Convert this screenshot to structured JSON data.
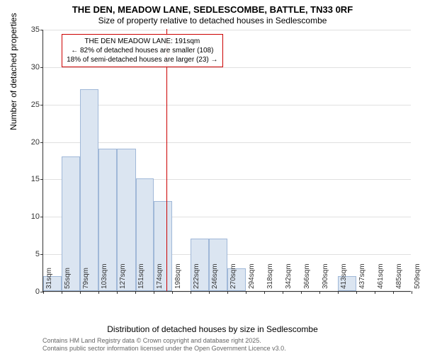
{
  "titles": {
    "main": "THE DEN, MEADOW LANE, SEDLESCOMBE, BATTLE, TN33 0RF",
    "sub": "Size of property relative to detached houses in Sedlescombe"
  },
  "axes": {
    "y_label": "Number of detached properties",
    "x_label": "Distribution of detached houses by size in Sedlescombe",
    "y_ticks": [
      0,
      5,
      10,
      15,
      20,
      25,
      30,
      35
    ],
    "y_max": 35,
    "x_ticks": [
      "31sqm",
      "55sqm",
      "79sqm",
      "103sqm",
      "127sqm",
      "151sqm",
      "174sqm",
      "198sqm",
      "222sqm",
      "246sqm",
      "270sqm",
      "294sqm",
      "318sqm",
      "342sqm",
      "366sqm",
      "390sqm",
      "413sqm",
      "437sqm",
      "461sqm",
      "485sqm",
      "509sqm"
    ],
    "x_min": 31,
    "x_max": 509
  },
  "histogram": {
    "type": "histogram",
    "bar_fill": "#dbe5f1",
    "bar_stroke": "#a0b8d8",
    "grid_color": "#e0e0e0",
    "background_color": "#ffffff",
    "bins": [
      {
        "start": 31,
        "end": 55,
        "count": 2
      },
      {
        "start": 55,
        "end": 79,
        "count": 18
      },
      {
        "start": 79,
        "end": 103,
        "count": 27
      },
      {
        "start": 103,
        "end": 127,
        "count": 19
      },
      {
        "start": 127,
        "end": 151,
        "count": 19
      },
      {
        "start": 151,
        "end": 174,
        "count": 15
      },
      {
        "start": 174,
        "end": 198,
        "count": 12
      },
      {
        "start": 198,
        "end": 222,
        "count": 0
      },
      {
        "start": 222,
        "end": 246,
        "count": 7
      },
      {
        "start": 246,
        "end": 270,
        "count": 7
      },
      {
        "start": 270,
        "end": 294,
        "count": 3
      },
      {
        "start": 294,
        "end": 318,
        "count": 0
      },
      {
        "start": 318,
        "end": 342,
        "count": 0
      },
      {
        "start": 342,
        "end": 366,
        "count": 0
      },
      {
        "start": 366,
        "end": 390,
        "count": 0
      },
      {
        "start": 390,
        "end": 413,
        "count": 0
      },
      {
        "start": 413,
        "end": 437,
        "count": 2
      },
      {
        "start": 437,
        "end": 461,
        "count": 0
      },
      {
        "start": 461,
        "end": 485,
        "count": 0
      },
      {
        "start": 485,
        "end": 509,
        "count": 0
      }
    ]
  },
  "marker": {
    "value": 191,
    "color": "#cc0000"
  },
  "annotation": {
    "line1": "THE DEN MEADOW LANE: 191sqm",
    "line2": "← 82% of detached houses are smaller (108)",
    "line3": "18% of semi-detached houses are larger (23) →",
    "border_color": "#cc0000",
    "fontsize": 10
  },
  "footer": {
    "line1": "Contains HM Land Registry data © Crown copyright and database right 2025.",
    "line2": "Contains public sector information licensed under the Open Government Licence v3.0."
  }
}
